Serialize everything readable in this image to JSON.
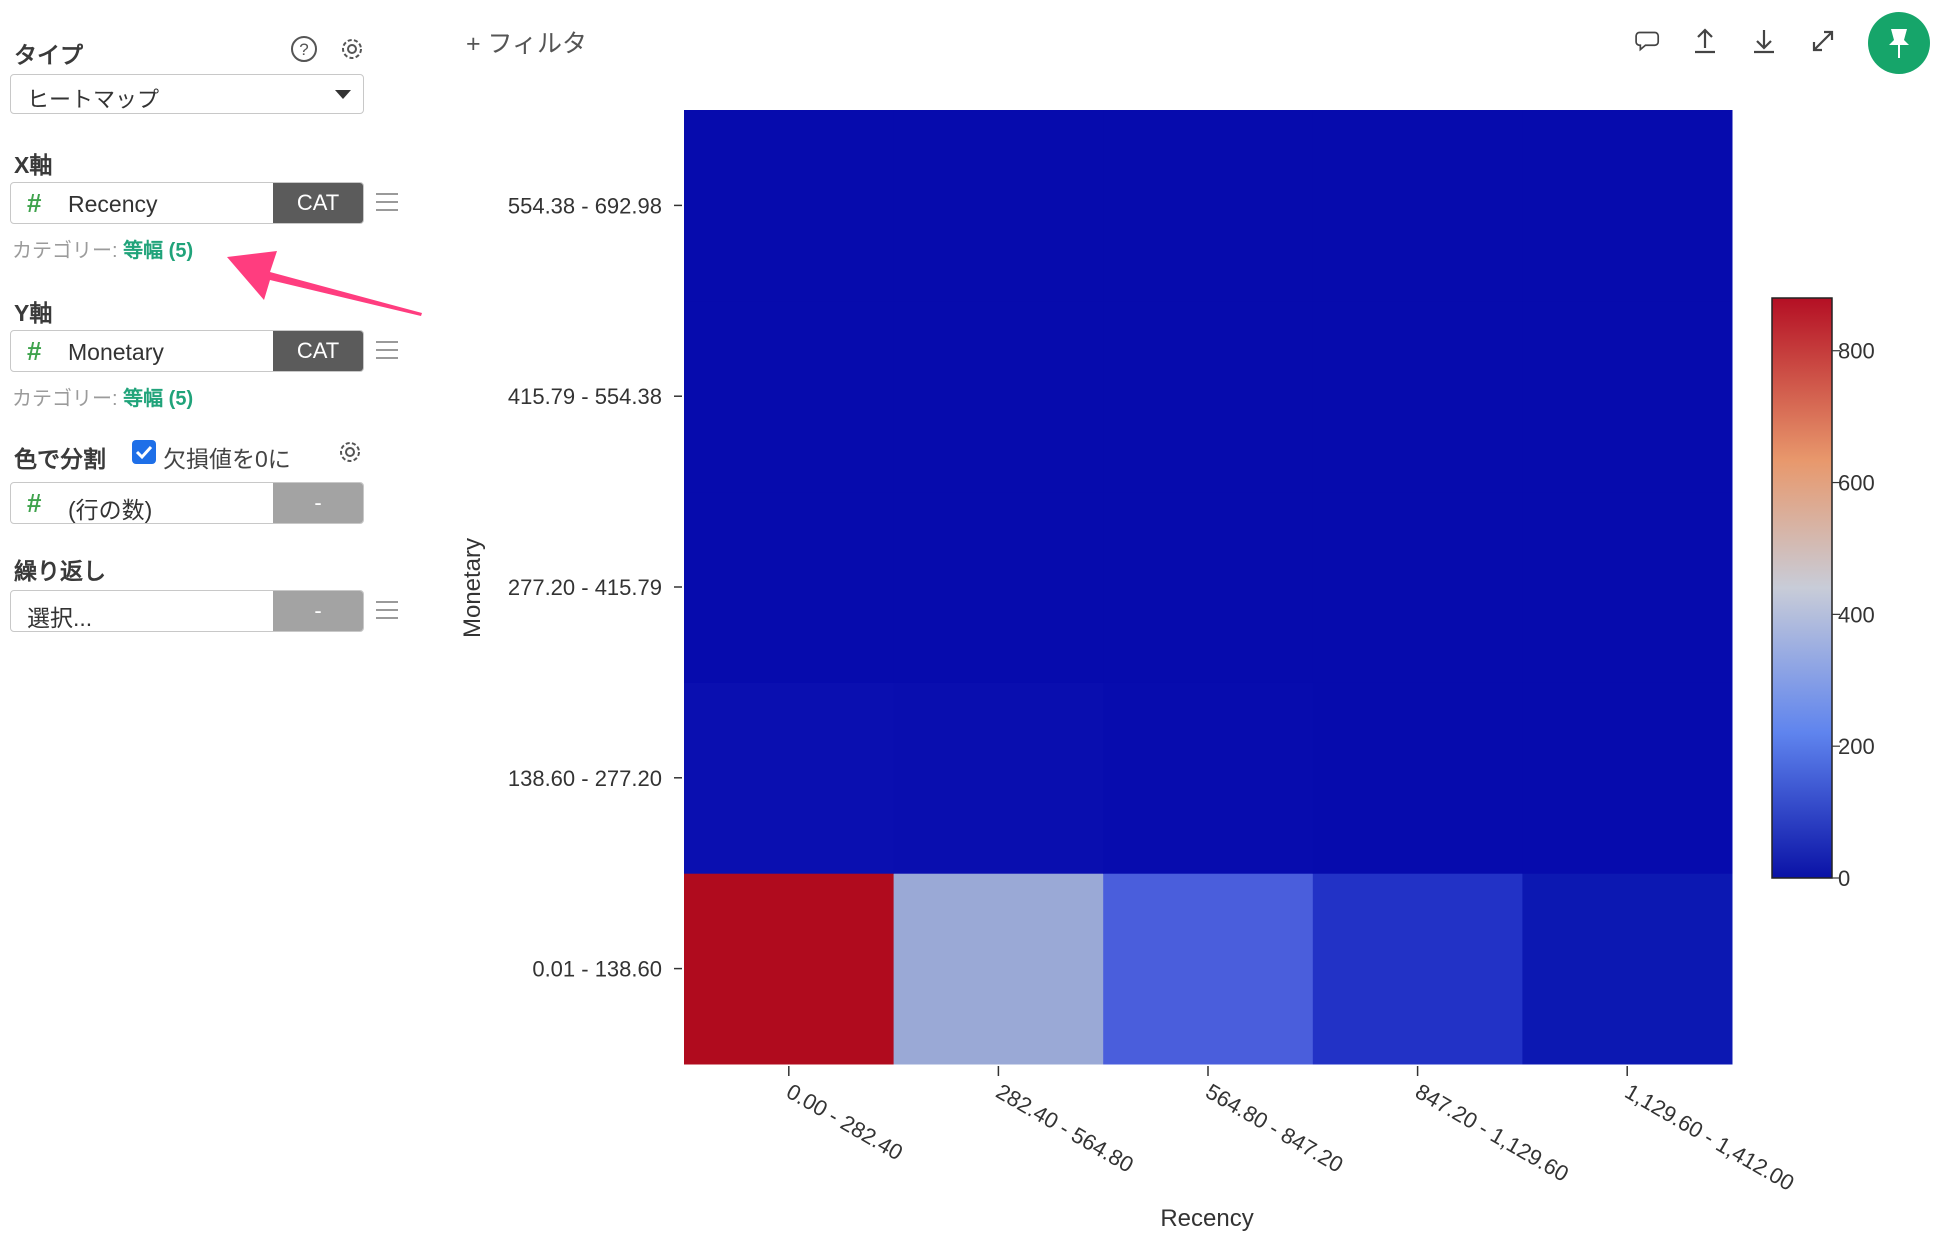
{
  "sidebar": {
    "type_label": "タイプ",
    "type_value": "ヒートマップ",
    "x_label": "X軸",
    "x_field": "Recency",
    "x_tag": "CAT",
    "x_cat_prefix": "カテゴリー: ",
    "x_cat_value": "等幅 (5)",
    "y_label": "Y軸",
    "y_field": "Monetary",
    "y_tag": "CAT",
    "y_cat_prefix": "カテゴリー: ",
    "y_cat_value": "等幅 (5)",
    "color_label": "色で分割",
    "missing_zero_label": "欠損値を0に",
    "missing_zero_checked": true,
    "color_field": "(行の数)",
    "color_tag": "-",
    "repeat_label": "繰り返し",
    "repeat_placeholder": "選択...",
    "repeat_tag": "-"
  },
  "toolbar": {
    "add_filter": "+ フィルタ",
    "icons": [
      "comment-icon",
      "upload-icon",
      "download-icon",
      "expand-icon",
      "pin-icon"
    ],
    "pin_color": "#16a56a"
  },
  "chart_data": {
    "type": "heatmap",
    "xlabel": "Recency",
    "ylabel": "Monetary",
    "x_categories": [
      "0.00 - 282.40",
      "282.40 - 564.80",
      "564.80 - 847.20",
      "847.20 - 1,129.60",
      "1,129.60 - 1,412.00"
    ],
    "y_categories": [
      "0.01 - 138.60",
      "138.60 - 277.20",
      "277.20 - 415.79",
      "415.79 - 554.38",
      "554.38 - 692.98"
    ],
    "values": [
      [
        880,
        410,
        200,
        90,
        30
      ],
      [
        12,
        6,
        3,
        2,
        1
      ],
      [
        2,
        1,
        1,
        0,
        0
      ],
      [
        1,
        0,
        0,
        0,
        0
      ],
      [
        0,
        0,
        0,
        0,
        0
      ]
    ],
    "colorbar": {
      "min": 0,
      "max": 880,
      "ticks": [
        0,
        200,
        400,
        600,
        800
      ],
      "colormap": "coolwarm"
    },
    "cell_colors": [
      [
        "#b00b1e",
        "#9aa9d6",
        "#4a5edc",
        "#2232c6",
        "#0c18b2"
      ],
      [
        "#0a0fb0",
        "#090eaf",
        "#070cae",
        "#060bad",
        "#060bad"
      ],
      [
        "#060bad",
        "#060bad",
        "#060bad",
        "#060bad",
        "#060bad"
      ],
      [
        "#060bad",
        "#060bad",
        "#060bad",
        "#060bad",
        "#060bad"
      ],
      [
        "#060bad",
        "#060bad",
        "#060bad",
        "#060bad",
        "#060bad"
      ]
    ]
  },
  "annotation": {
    "arrow_color": "#ff3d7f"
  }
}
